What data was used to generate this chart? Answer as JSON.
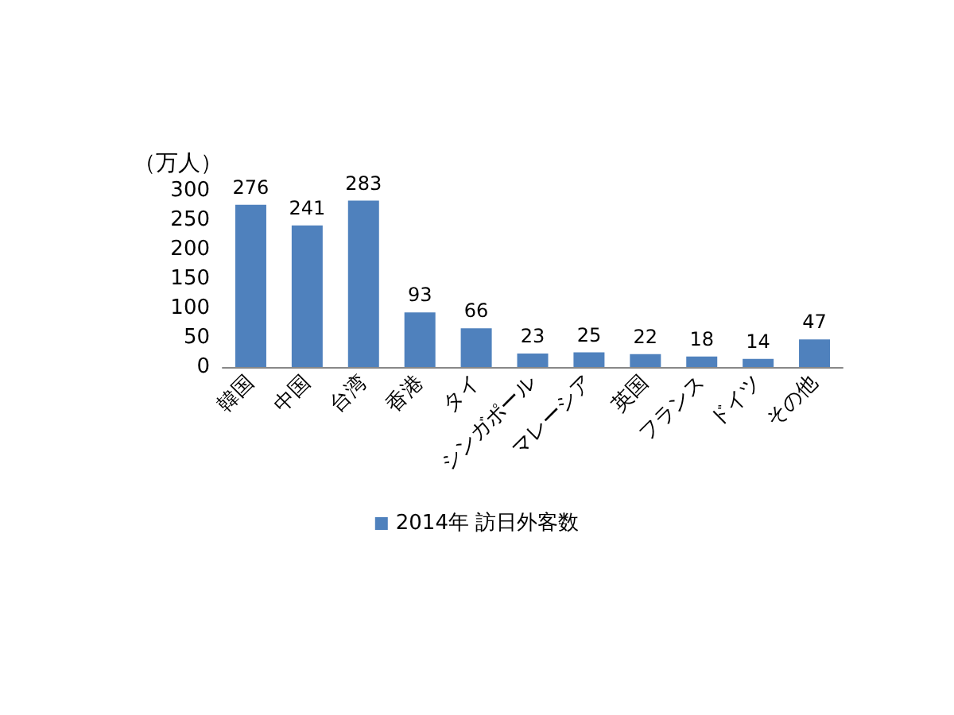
{
  "chart_data": {
    "type": "bar",
    "ylabel": "（万人）",
    "categories": [
      "韓国",
      "中国",
      "台湾",
      "香港",
      "タイ",
      "シンガポール",
      "マレーシア",
      "英国",
      "フランス",
      "ドイツ",
      "その他"
    ],
    "series": [
      {
        "name": "2014年 訪日外客数",
        "color": "#4f81bd",
        "values": [
          276,
          241,
          283,
          93,
          66,
          23,
          25,
          22,
          18,
          14,
          47
        ]
      }
    ],
    "ylim": [
      0,
      300
    ],
    "yticks": [
      0,
      50,
      100,
      150,
      200,
      250,
      300
    ],
    "data_labels": true,
    "grid": false,
    "legend": "bottom"
  }
}
